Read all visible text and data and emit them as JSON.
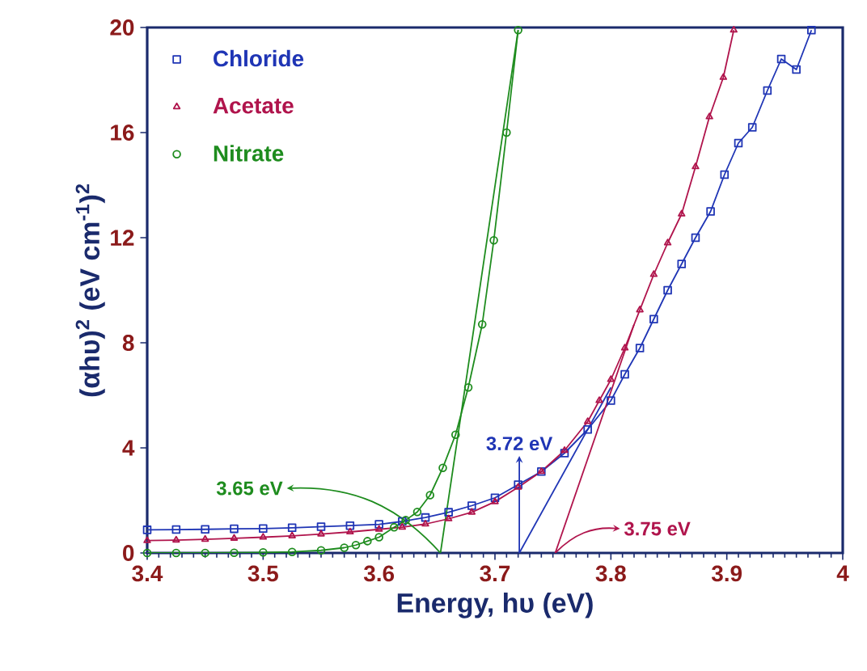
{
  "chart_data": {
    "type": "line",
    "xlabel": "Energy, hυ (eV)",
    "ylabel": "(αhυ)$^{2}$ (eV cm$^{-1}$)$^{2}$",
    "xlim": [
      3.4,
      4.0
    ],
    "ylim": [
      0,
      20
    ],
    "xticks": [
      3.4,
      3.5,
      3.6,
      3.7,
      3.8,
      3.9,
      4
    ],
    "yticks": [
      0,
      4,
      8,
      12,
      16,
      20
    ],
    "legend": "top left",
    "series": [
      {
        "name": "Chloride",
        "color": "#1f35b5",
        "marker": "square",
        "x": [
          3.4,
          3.425,
          3.45,
          3.475,
          3.5,
          3.525,
          3.55,
          3.575,
          3.6,
          3.62,
          3.64,
          3.66,
          3.68,
          3.7,
          3.72,
          3.74,
          3.76,
          3.78,
          3.8,
          3.812,
          3.825,
          3.837,
          3.849,
          3.861,
          3.873,
          3.886,
          3.898,
          3.91,
          3.922,
          3.935,
          3.947,
          3.96,
          3.973
        ],
        "values": [
          0.88,
          0.89,
          0.9,
          0.92,
          0.93,
          0.96,
          1.0,
          1.04,
          1.09,
          1.2,
          1.35,
          1.55,
          1.8,
          2.1,
          2.6,
          3.1,
          3.8,
          4.7,
          5.8,
          6.8,
          7.8,
          8.9,
          10.0,
          11.0,
          12.0,
          13.0,
          14.4,
          15.6,
          16.2,
          17.6,
          18.8,
          18.4,
          19.9
        ]
      },
      {
        "name": "Acetate",
        "color": "#b0144c",
        "marker": "triangle",
        "x": [
          3.4,
          3.425,
          3.45,
          3.475,
          3.5,
          3.525,
          3.55,
          3.575,
          3.6,
          3.62,
          3.64,
          3.66,
          3.68,
          3.7,
          3.72,
          3.74,
          3.76,
          3.78,
          3.79,
          3.8,
          3.812,
          3.825,
          3.837,
          3.849,
          3.861,
          3.873,
          3.885,
          3.897,
          3.906
        ],
        "values": [
          0.47,
          0.49,
          0.52,
          0.56,
          0.6,
          0.65,
          0.72,
          0.8,
          0.9,
          0.98,
          1.1,
          1.3,
          1.55,
          1.95,
          2.5,
          3.1,
          3.9,
          5.0,
          5.8,
          6.6,
          7.8,
          9.25,
          10.6,
          11.8,
          12.9,
          14.7,
          16.6,
          18.1,
          19.9
        ]
      },
      {
        "name": "Nitrate",
        "color": "#1e8c1e",
        "marker": "circle",
        "x": [
          3.4,
          3.425,
          3.45,
          3.475,
          3.5,
          3.525,
          3.55,
          3.57,
          3.58,
          3.59,
          3.6,
          3.613,
          3.623,
          3.633,
          3.644,
          3.655,
          3.666,
          3.677,
          3.689,
          3.699,
          3.71,
          3.72
        ],
        "values": [
          0.0,
          0.0,
          0.0,
          0.01,
          0.02,
          0.04,
          0.1,
          0.2,
          0.3,
          0.45,
          0.6,
          0.98,
          1.25,
          1.56,
          2.2,
          3.24,
          4.5,
          6.3,
          8.7,
          11.9,
          16.0,
          19.9
        ]
      },
      {
        "color": "#1e8c1e",
        "marker": "none",
        "x": [
          3.653,
          3.72
        ],
        "values": [
          0,
          19.9
        ]
      },
      {
        "color": "#1f35b5",
        "marker": "none",
        "x": [
          3.721,
          3.8
        ],
        "values": [
          0,
          6.3
        ]
      },
      {
        "color": "#b0144c",
        "marker": "none",
        "x": [
          3.752,
          3.82
        ],
        "values": [
          0,
          8.7
        ]
      }
    ],
    "annotations": [
      {
        "text": "3.65 eV",
        "x": 3.653,
        "y": 0
      },
      {
        "text": "3.72 eV",
        "x": 3.721,
        "y": 0
      },
      {
        "text": "3.75 eV",
        "x": 3.752,
        "y": 0
      }
    ]
  }
}
